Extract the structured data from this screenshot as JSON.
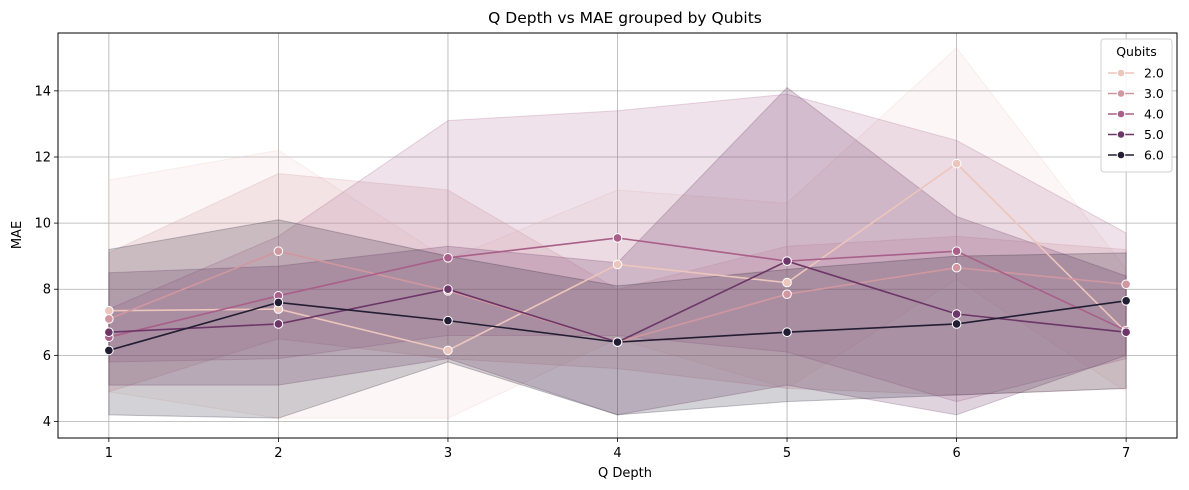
{
  "chart_data": {
    "type": "line",
    "title": "Q Depth vs MAE grouped by Qubits",
    "xlabel": "Q Depth",
    "ylabel": "MAE",
    "x": [
      1,
      2,
      3,
      4,
      5,
      6,
      7
    ],
    "xlim": [
      0.7,
      7.3
    ],
    "ylim": [
      3.5,
      15.75
    ],
    "xticks": [
      "1",
      "2",
      "3",
      "4",
      "5",
      "6",
      "7"
    ],
    "yticks": [
      "4",
      "6",
      "8",
      "10",
      "12",
      "14"
    ],
    "grid": true,
    "legend": {
      "title": "Qubits",
      "placement": "top-right"
    },
    "series": [
      {
        "name": "2.0",
        "color": "#ecc5bc",
        "values": [
          7.35,
          7.4,
          6.15,
          8.75,
          8.2,
          11.8,
          6.7
        ],
        "ci_low": [
          4.9,
          4.1,
          4.1,
          6.5,
          5.0,
          8.3,
          4.9
        ],
        "ci_high": [
          11.3,
          12.2,
          8.9,
          11.0,
          10.6,
          15.3,
          8.6
        ],
        "band_opacity": 0.14
      },
      {
        "name": "3.0",
        "color": "#d097a0",
        "values": [
          7.1,
          9.15,
          7.95,
          6.4,
          7.85,
          8.65,
          8.15
        ],
        "ci_low": [
          4.9,
          6.5,
          5.9,
          5.6,
          5.0,
          4.8,
          5.0
        ],
        "ci_high": [
          9.1,
          11.5,
          11.0,
          8.0,
          9.3,
          9.6,
          9.2
        ],
        "band_opacity": 0.2
      },
      {
        "name": "4.0",
        "color": "#a95f8a",
        "values": [
          6.55,
          7.8,
          8.95,
          9.55,
          8.85,
          9.15,
          6.75
        ],
        "ci_low": [
          5.8,
          5.9,
          6.6,
          6.6,
          6.1,
          4.6,
          5.9
        ],
        "ci_high": [
          7.4,
          9.6,
          13.1,
          13.4,
          13.9,
          12.5,
          9.7
        ],
        "band_opacity": 0.18
      },
      {
        "name": "5.0",
        "color": "#6c3668",
        "values": [
          6.7,
          6.95,
          8.0,
          6.4,
          8.85,
          7.25,
          6.7
        ],
        "ci_low": [
          5.1,
          5.1,
          5.9,
          4.2,
          5.1,
          4.2,
          6.0
        ],
        "ci_high": [
          8.5,
          8.7,
          9.3,
          8.8,
          14.1,
          10.2,
          8.4
        ],
        "band_opacity": 0.22
      },
      {
        "name": "6.0",
        "color": "#231d33",
        "values": [
          6.15,
          7.6,
          7.05,
          6.4,
          6.7,
          6.95,
          7.65
        ],
        "ci_low": [
          4.2,
          4.1,
          5.8,
          4.2,
          4.6,
          4.8,
          5.0
        ],
        "ci_high": [
          9.2,
          10.1,
          9.0,
          8.1,
          8.6,
          9.0,
          9.1
        ],
        "band_opacity": 0.2
      }
    ]
  }
}
